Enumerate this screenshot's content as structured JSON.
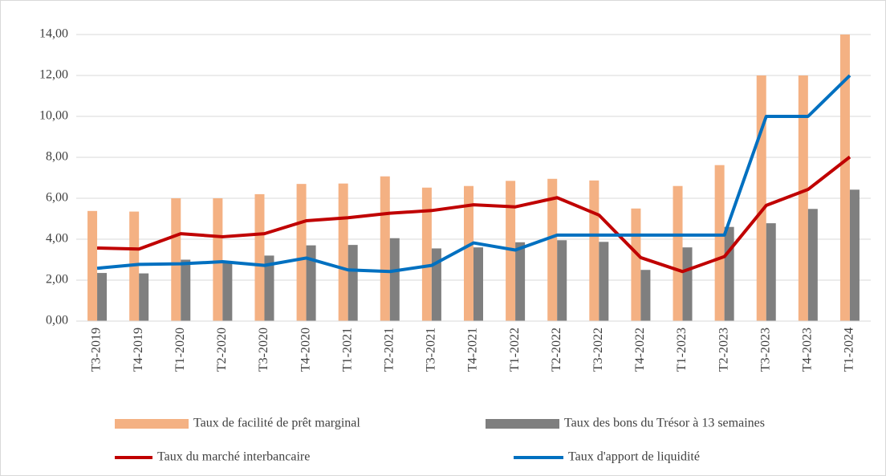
{
  "chart_data": {
    "type": "combo",
    "categories": [
      "T3-2019",
      "T4-2019",
      "T1-2020",
      "T2-2020",
      "T3-2020",
      "T4-2020",
      "T1-2021",
      "T2-2021",
      "T3-2021",
      "T4-2021",
      "T1-2022",
      "T2-2022",
      "T3-2022",
      "T4-2022",
      "T1-2023",
      "T2-2023",
      "T3-2023",
      "T4-2023",
      "T1-2024"
    ],
    "series": [
      {
        "name": "Taux de facilité de prêt marginal",
        "type": "bar",
        "color": "#f4b183",
        "values": [
          5.38,
          5.35,
          6.0,
          6.0,
          6.2,
          6.7,
          6.72,
          7.07,
          6.52,
          6.6,
          6.85,
          6.95,
          6.87,
          5.5,
          6.6,
          7.62,
          12.0,
          12.0,
          14.0
        ]
      },
      {
        "name": "Taux des bons du Trésor à 13 semaines",
        "type": "bar",
        "color": "#7f7f7f",
        "values": [
          2.35,
          2.33,
          3.0,
          2.9,
          3.2,
          3.7,
          3.72,
          4.05,
          3.55,
          3.6,
          3.85,
          3.95,
          3.87,
          2.5,
          3.6,
          4.6,
          4.78,
          5.48,
          6.42
        ]
      },
      {
        "name": "Taux du marché interbancaire",
        "type": "line",
        "color": "#c00000",
        "values": [
          3.57,
          3.52,
          4.27,
          4.12,
          4.27,
          4.9,
          5.05,
          5.27,
          5.4,
          5.68,
          5.58,
          6.03,
          5.18,
          3.1,
          2.42,
          3.15,
          5.65,
          6.43,
          8.02
        ]
      },
      {
        "name": "Taux d'apport de liquidité",
        "type": "line",
        "color": "#0070c0",
        "values": [
          2.58,
          2.77,
          2.8,
          2.9,
          2.72,
          3.08,
          2.5,
          2.42,
          2.72,
          3.82,
          3.47,
          4.2,
          4.2,
          4.2,
          4.2,
          4.2,
          10.0,
          10.0,
          12.0
        ]
      }
    ],
    "ylim": [
      0,
      14
    ],
    "yticks": [
      {
        "value": 0,
        "label": "0,00"
      },
      {
        "value": 2,
        "label": "2,00"
      },
      {
        "value": 4,
        "label": "4,00"
      },
      {
        "value": 6,
        "label": "6,00"
      },
      {
        "value": 8,
        "label": "8,00"
      },
      {
        "value": 10,
        "label": "10,00"
      },
      {
        "value": 12,
        "label": "12,00"
      },
      {
        "value": 14,
        "label": "14,00"
      }
    ],
    "grid": true
  }
}
